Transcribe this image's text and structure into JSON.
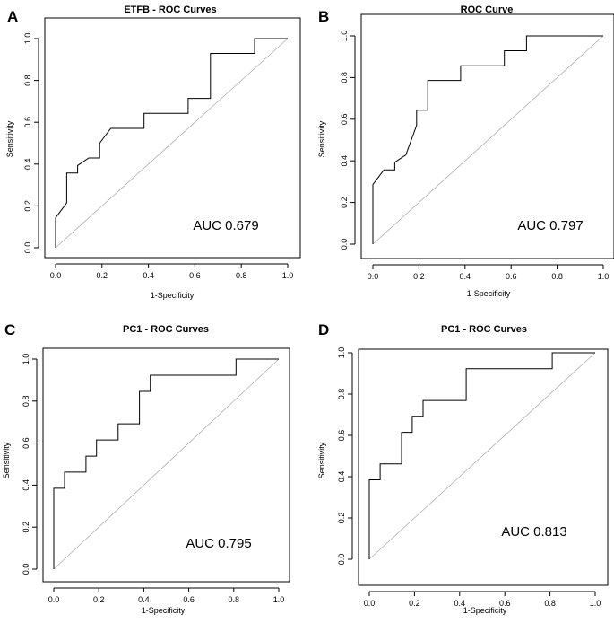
{
  "chart_data": [
    {
      "panel": "A",
      "type": "line",
      "title": "ETFB - ROC Curves",
      "xlabel": "1-Specificity",
      "ylabel": "Sensitivity",
      "xlim": [
        0,
        1
      ],
      "ylim": [
        0,
        1
      ],
      "xticks": [
        "0.0",
        "0.2",
        "0.4",
        "0.6",
        "0.8",
        "1.0"
      ],
      "yticks": [
        "0.0",
        "0.2",
        "0.4",
        "0.6",
        "0.8",
        "1.0"
      ],
      "annotation": "AUC 0.679",
      "reference_line": "diagonal",
      "series": [
        {
          "x": [
            0,
            0,
            0.048,
            0.048,
            0.095,
            0.095,
            0.143,
            0.143,
            0.19,
            0.19,
            0.238,
            0.238,
            0.381,
            0.381,
            0.571,
            0.571,
            0.667,
            0.667,
            0.857,
            0.857,
            1.0
          ],
          "y": [
            0,
            0.143,
            0.214,
            0.357,
            0.357,
            0.393,
            0.429,
            0.429,
            0.429,
            0.5,
            0.571,
            0.571,
            0.571,
            0.643,
            0.643,
            0.714,
            0.714,
            0.929,
            0.929,
            1.0,
            1.0
          ]
        }
      ]
    },
    {
      "panel": "B",
      "type": "line",
      "title": "ROC Curve",
      "xlabel": "1-Specificity",
      "ylabel": "Sensitivity",
      "xlim": [
        0,
        1
      ],
      "ylim": [
        0,
        1
      ],
      "xticks": [
        "0.0",
        "0.2",
        "0.4",
        "0.6",
        "0.8",
        "1.0"
      ],
      "yticks": [
        "0.0",
        "0.2",
        "0.4",
        "0.6",
        "0.8",
        "1.0"
      ],
      "annotation": "AUC 0.797",
      "reference_line": "diagonal",
      "series": [
        {
          "x": [
            0,
            0,
            0.048,
            0.048,
            0.095,
            0.095,
            0.143,
            0.143,
            0.19,
            0.19,
            0.238,
            0.238,
            0.381,
            0.381,
            0.571,
            0.571,
            0.667,
            0.667,
            1.0
          ],
          "y": [
            0,
            0.286,
            0.357,
            0.357,
            0.357,
            0.393,
            0.429,
            0.429,
            0.571,
            0.643,
            0.643,
            0.786,
            0.786,
            0.857,
            0.857,
            0.929,
            0.929,
            1.0,
            1.0
          ]
        }
      ]
    },
    {
      "panel": "C",
      "type": "line",
      "title": "PC1 - ROC Curves",
      "xlabel": "1-Specificity",
      "ylabel": "Sensitivity",
      "xlim": [
        0,
        1
      ],
      "ylim": [
        0,
        1
      ],
      "xticks": [
        "0.0",
        "0.2",
        "0.4",
        "0.6",
        "0.8",
        "1.0"
      ],
      "yticks": [
        "0.0",
        "0.2",
        "0.4",
        "0.6",
        "0.8",
        "1.0"
      ],
      "annotation": "AUC 0.795",
      "reference_line": "diagonal",
      "series": [
        {
          "x": [
            0,
            0,
            0.048,
            0.048,
            0.143,
            0.143,
            0.19,
            0.19,
            0.286,
            0.286,
            0.381,
            0.381,
            0.429,
            0.429,
            0.81,
            0.81,
            1.0
          ],
          "y": [
            0,
            0.385,
            0.385,
            0.462,
            0.462,
            0.538,
            0.538,
            0.615,
            0.615,
            0.692,
            0.692,
            0.846,
            0.846,
            0.923,
            0.923,
            1.0,
            1.0
          ]
        }
      ]
    },
    {
      "panel": "D",
      "type": "line",
      "title": "PC1 - ROC Curves",
      "xlabel": "1-Specificity",
      "ylabel": "Sensitivity",
      "xlim": [
        0,
        1
      ],
      "ylim": [
        0,
        1
      ],
      "xticks": [
        "0.0",
        "0.2",
        "0.4",
        "0.6",
        "0.8",
        "1.0"
      ],
      "yticks": [
        "0.0",
        "0.2",
        "0.4",
        "0.6",
        "0.8",
        "1.0"
      ],
      "annotation": "AUC 0.813",
      "reference_line": "diagonal",
      "series": [
        {
          "x": [
            0,
            0,
            0.048,
            0.048,
            0.143,
            0.143,
            0.19,
            0.19,
            0.238,
            0.238,
            0.429,
            0.429,
            0.81,
            0.81,
            1.0
          ],
          "y": [
            0,
            0.385,
            0.385,
            0.462,
            0.462,
            0.615,
            0.615,
            0.692,
            0.692,
            0.769,
            0.769,
            0.923,
            0.923,
            1.0,
            1.0
          ]
        }
      ]
    }
  ]
}
